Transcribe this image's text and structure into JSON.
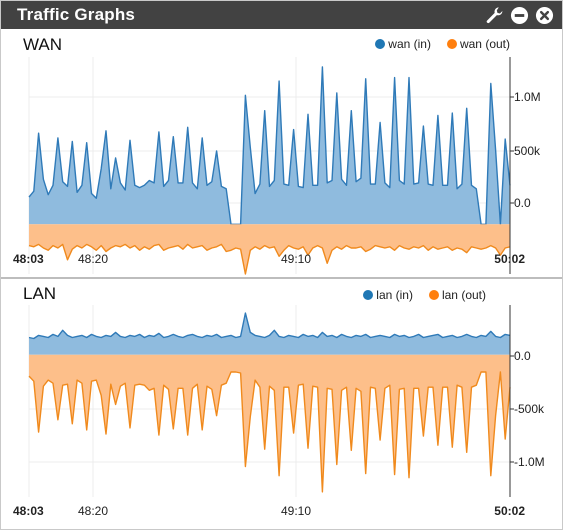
{
  "widget": {
    "title": "Traffic Graphs",
    "icons": [
      "wrench-icon",
      "minimize-icon",
      "close-icon"
    ]
  },
  "colors": {
    "in_fill": "#8fbbde",
    "in_line": "#2f7ab8",
    "out_fill": "#fdbf8a",
    "out_line": "#f08a1d",
    "in_dot": "#1f77b4",
    "out_dot": "#ff7f0e",
    "titlebar": "#424242"
  },
  "wan": {
    "title": "WAN",
    "legend_in": "wan (in)",
    "legend_out": "wan (out)"
  },
  "lan": {
    "title": "LAN",
    "legend_in": "lan (in)",
    "legend_out": "lan (out)"
  },
  "chart_data": [
    {
      "type": "area",
      "title": "WAN",
      "x_ticks": [
        {
          "label": "48:03",
          "bold": true
        },
        {
          "label": "48:20",
          "bold": false
        },
        {
          "label": "49:10",
          "bold": false
        },
        {
          "label": "50:02",
          "bold": true
        }
      ],
      "y_ticks": [
        "1.0M",
        "500k",
        "0.0"
      ],
      "ylim": [
        -420000,
        1380000
      ],
      "series": [
        {
          "name": "wan (in)",
          "values": [
            230000,
            280000,
            770000,
            380000,
            250000,
            330000,
            730000,
            360000,
            320000,
            700000,
            270000,
            330000,
            690000,
            260000,
            220000,
            470000,
            790000,
            300000,
            560000,
            350000,
            290000,
            710000,
            330000,
            310000,
            330000,
            370000,
            350000,
            780000,
            320000,
            370000,
            740000,
            350000,
            350000,
            820000,
            350000,
            300000,
            730000,
            330000,
            360000,
            620000,
            320000,
            300000,
            0,
            0,
            0,
            1090000,
            650000,
            260000,
            340000,
            960000,
            320000,
            370000,
            1210000,
            340000,
            330000,
            800000,
            320000,
            310000,
            930000,
            330000,
            330000,
            1330000,
            350000,
            370000,
            1110000,
            380000,
            330000,
            960000,
            360000,
            390000,
            1230000,
            340000,
            340000,
            860000,
            350000,
            310000,
            1240000,
            370000,
            340000,
            1240000,
            340000,
            350000,
            830000,
            340000,
            330000,
            920000,
            330000,
            330000,
            940000,
            300000,
            340000,
            980000,
            330000,
            300000,
            0,
            0,
            1190000,
            630000,
            0,
            720000,
            330000
          ]
        },
        {
          "name": "wan (out)",
          "values": [
            -180000,
            -190000,
            -170000,
            -200000,
            -220000,
            -180000,
            -200000,
            -170000,
            -300000,
            -210000,
            -180000,
            -200000,
            -170000,
            -190000,
            -220000,
            -180000,
            -230000,
            -200000,
            -180000,
            -190000,
            -170000,
            -200000,
            -180000,
            -220000,
            -190000,
            -210000,
            -180000,
            -170000,
            -220000,
            -200000,
            -190000,
            -180000,
            -210000,
            -170000,
            -200000,
            -190000,
            -180000,
            -220000,
            -200000,
            -190000,
            -170000,
            -230000,
            -220000,
            -200000,
            -210000,
            -420000,
            -220000,
            -190000,
            -210000,
            -180000,
            -200000,
            -190000,
            -270000,
            -220000,
            -180000,
            -200000,
            -210000,
            -190000,
            -260000,
            -200000,
            -180000,
            -200000,
            -330000,
            -220000,
            -190000,
            -210000,
            -180000,
            -200000,
            -200000,
            -190000,
            -230000,
            -210000,
            -180000,
            -190000,
            -200000,
            -190000,
            -220000,
            -180000,
            -200000,
            -210000,
            -190000,
            -200000,
            -180000,
            -220000,
            -190000,
            -210000,
            -200000,
            -190000,
            -220000,
            -200000,
            -210000,
            -240000,
            -190000,
            -200000,
            -210000,
            -200000,
            -180000,
            -200000,
            -260000,
            -200000,
            -190000
          ]
        }
      ]
    },
    {
      "type": "area",
      "title": "LAN",
      "x_ticks": [
        {
          "label": "48:03",
          "bold": true
        },
        {
          "label": "48:20",
          "bold": false
        },
        {
          "label": "49:10",
          "bold": false
        },
        {
          "label": "50:02",
          "bold": true
        }
      ],
      "y_ticks": [
        "0.0",
        "-500k",
        "-1.0M"
      ],
      "ylim": [
        -1400000,
        450000
      ],
      "series": [
        {
          "name": "lan (in)",
          "values": [
            170000,
            160000,
            190000,
            180000,
            170000,
            200000,
            180000,
            240000,
            190000,
            170000,
            180000,
            190000,
            170000,
            200000,
            180000,
            170000,
            190000,
            180000,
            220000,
            180000,
            170000,
            190000,
            180000,
            200000,
            170000,
            190000,
            180000,
            210000,
            170000,
            180000,
            200000,
            180000,
            170000,
            190000,
            200000,
            180000,
            170000,
            190000,
            180000,
            200000,
            170000,
            180000,
            190000,
            170000,
            180000,
            410000,
            220000,
            190000,
            180000,
            170000,
            190000,
            240000,
            180000,
            170000,
            190000,
            180000,
            170000,
            200000,
            180000,
            190000,
            170000,
            220000,
            180000,
            190000,
            170000,
            200000,
            180000,
            170000,
            190000,
            180000,
            200000,
            170000,
            180000,
            190000,
            180000,
            170000,
            200000,
            180000,
            190000,
            170000,
            180000,
            200000,
            170000,
            180000,
            190000,
            200000,
            170000,
            180000,
            190000,
            170000,
            180000,
            200000,
            180000,
            170000,
            190000,
            180000,
            230000,
            180000,
            170000,
            200000,
            190000
          ]
        },
        {
          "name": "lan (out)",
          "values": [
            -210000,
            -260000,
            -760000,
            -310000,
            -250000,
            -280000,
            -640000,
            -300000,
            -290000,
            -680000,
            -250000,
            -280000,
            -740000,
            -260000,
            -250000,
            -400000,
            -780000,
            -290000,
            -490000,
            -310000,
            -280000,
            -720000,
            -300000,
            -290000,
            -300000,
            -350000,
            -330000,
            -790000,
            -300000,
            -340000,
            -730000,
            -330000,
            -330000,
            -790000,
            -330000,
            -290000,
            -740000,
            -310000,
            -340000,
            -600000,
            -300000,
            -280000,
            -170000,
            -170000,
            -180000,
            -1100000,
            -610000,
            -250000,
            -320000,
            -930000,
            -310000,
            -350000,
            -1190000,
            -320000,
            -320000,
            -770000,
            -300000,
            -290000,
            -920000,
            -310000,
            -320000,
            -1350000,
            -330000,
            -340000,
            -1080000,
            -350000,
            -320000,
            -940000,
            -330000,
            -360000,
            -1170000,
            -320000,
            -330000,
            -840000,
            -330000,
            -300000,
            -1180000,
            -340000,
            -330000,
            -1210000,
            -330000,
            -330000,
            -800000,
            -320000,
            -320000,
            -890000,
            -320000,
            -320000,
            -910000,
            -300000,
            -320000,
            -960000,
            -320000,
            -300000,
            -170000,
            -170000,
            -1190000,
            -600000,
            -170000,
            -830000,
            -320000
          ]
        }
      ]
    }
  ]
}
